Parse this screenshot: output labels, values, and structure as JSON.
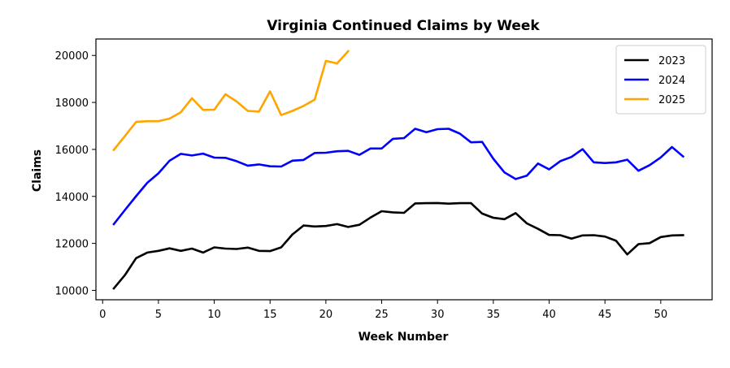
{
  "chart_data": {
    "type": "line",
    "title": "Virginia Continued Claims by Week",
    "xlabel": "Week Number",
    "ylabel": "Claims",
    "xlim": [
      -0.6,
      54.6
    ],
    "ylim": [
      9600,
      20700
    ],
    "xticks": [
      0,
      5,
      10,
      15,
      20,
      25,
      30,
      35,
      40,
      45,
      50
    ],
    "yticks": [
      10000,
      12000,
      14000,
      16000,
      18000,
      20000
    ],
    "grid": false,
    "legend_position": "top-right",
    "series": [
      {
        "name": "2023",
        "color": "#000000",
        "x": [
          1,
          2,
          3,
          4,
          5,
          6,
          7,
          8,
          9,
          10,
          11,
          12,
          13,
          14,
          15,
          16,
          17,
          18,
          19,
          20,
          21,
          22,
          23,
          24,
          25,
          26,
          27,
          28,
          29,
          30,
          31,
          32,
          33,
          34,
          35,
          36,
          37,
          38,
          39,
          40,
          41,
          42,
          43,
          44,
          45,
          46,
          47,
          48,
          49,
          50,
          51,
          52
        ],
        "values": [
          10080,
          10650,
          11370,
          11610,
          11680,
          11790,
          11680,
          11780,
          11610,
          11830,
          11780,
          11760,
          11820,
          11680,
          11670,
          11830,
          12380,
          12760,
          12720,
          12740,
          12820,
          12700,
          12790,
          13100,
          13370,
          13320,
          13300,
          13700,
          13710,
          13720,
          13690,
          13710,
          13710,
          13270,
          13090,
          13030,
          13290,
          12850,
          12620,
          12360,
          12350,
          12200,
          12340,
          12350,
          12290,
          12110,
          11530,
          11970,
          12010,
          12270,
          12340,
          12350
        ]
      },
      {
        "name": "2024",
        "color": "#0000ff",
        "x": [
          1,
          2,
          3,
          4,
          5,
          6,
          7,
          8,
          9,
          10,
          11,
          12,
          13,
          14,
          15,
          16,
          17,
          18,
          19,
          20,
          21,
          22,
          23,
          24,
          25,
          26,
          27,
          28,
          29,
          30,
          31,
          32,
          33,
          34,
          35,
          36,
          37,
          38,
          39,
          40,
          41,
          42,
          43,
          44,
          45,
          46,
          47,
          48,
          49,
          50,
          51,
          52
        ],
        "values": [
          12820,
          13420,
          14010,
          14580,
          14980,
          15520,
          15810,
          15740,
          15820,
          15650,
          15640,
          15500,
          15310,
          15360,
          15280,
          15270,
          15520,
          15550,
          15850,
          15860,
          15920,
          15940,
          15770,
          16040,
          16040,
          16450,
          16480,
          16880,
          16730,
          16860,
          16880,
          16670,
          16300,
          16320,
          15600,
          15020,
          14740,
          14880,
          15400,
          15150,
          15500,
          15680,
          16010,
          15450,
          15420,
          15450,
          15560,
          15090,
          15330,
          15660,
          16100,
          15700
        ]
      },
      {
        "name": "2025",
        "color": "#ffa500",
        "x": [
          1,
          2,
          3,
          4,
          5,
          6,
          7,
          8,
          9,
          10,
          11,
          12,
          13,
          14,
          15,
          16,
          17,
          18,
          19,
          20,
          21,
          22
        ],
        "values": [
          15980,
          16570,
          17170,
          17200,
          17200,
          17310,
          17580,
          18180,
          17680,
          17690,
          18350,
          18040,
          17640,
          17610,
          18470,
          17460,
          17640,
          17850,
          18120,
          19770,
          19660,
          20180
        ]
      }
    ]
  }
}
